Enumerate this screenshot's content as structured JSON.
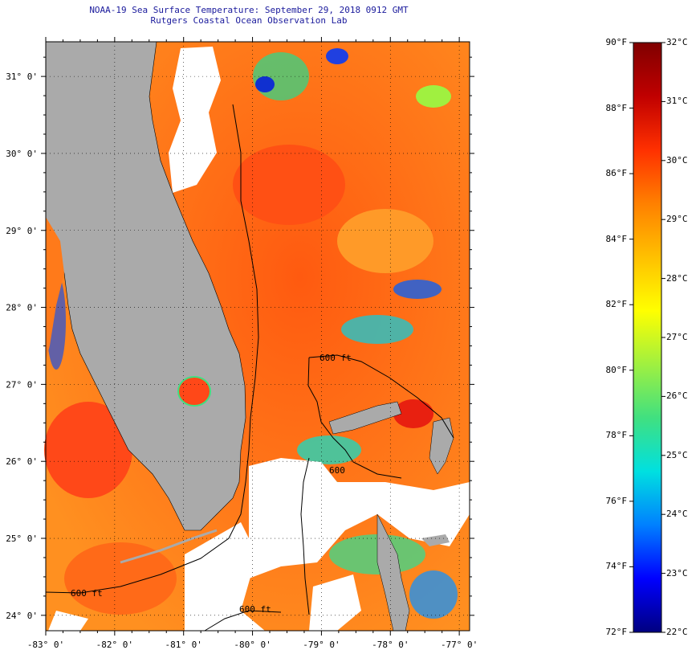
{
  "title": {
    "line1": "NOAA-19 Sea Surface Temperature:  September 29, 2018 0912 GMT",
    "line2": "Rutgers Coastal Ocean Observation Lab"
  },
  "map": {
    "lat_range": [
      23.8,
      31.45
    ],
    "lon_range": [
      -83.0,
      -76.85
    ],
    "lat_ticks": [
      "24° 0'",
      "25° 0'",
      "26° 0'",
      "27° 0'",
      "28° 0'",
      "29° 0'",
      "30° 0'",
      "31° 0'"
    ],
    "lon_ticks": [
      "-83° 0'",
      "-82° 0'",
      "-81° 0'",
      "-80° 0'",
      "-79° 0'",
      "-78° 0'",
      "-77° 0'"
    ],
    "contour_labels": [
      "600 ft",
      "600 ft",
      "600 ft",
      "600"
    ],
    "colors": {
      "land": "#aaaaaa",
      "no_data": "#ffffff",
      "grid": "#000000"
    }
  },
  "colorbar": {
    "fahrenheit_labels": [
      "90°F",
      "88°F",
      "86°F",
      "84°F",
      "82°F",
      "80°F",
      "78°F",
      "76°F",
      "74°F",
      "72°F"
    ],
    "celsius_labels": [
      "32°C",
      "31°C",
      "30°C",
      "29°C",
      "28°C",
      "27°C",
      "26°C",
      "25°C",
      "24°C",
      "23°C",
      "22°C"
    ],
    "f_range": [
      72,
      90
    ],
    "c_range": [
      22,
      32
    ],
    "stops": [
      "#000080",
      "#0000ff",
      "#0080ff",
      "#00e0e0",
      "#40e080",
      "#a0f040",
      "#ffff00",
      "#ffc000",
      "#ff8000",
      "#ff3000",
      "#c00000",
      "#800000"
    ]
  }
}
